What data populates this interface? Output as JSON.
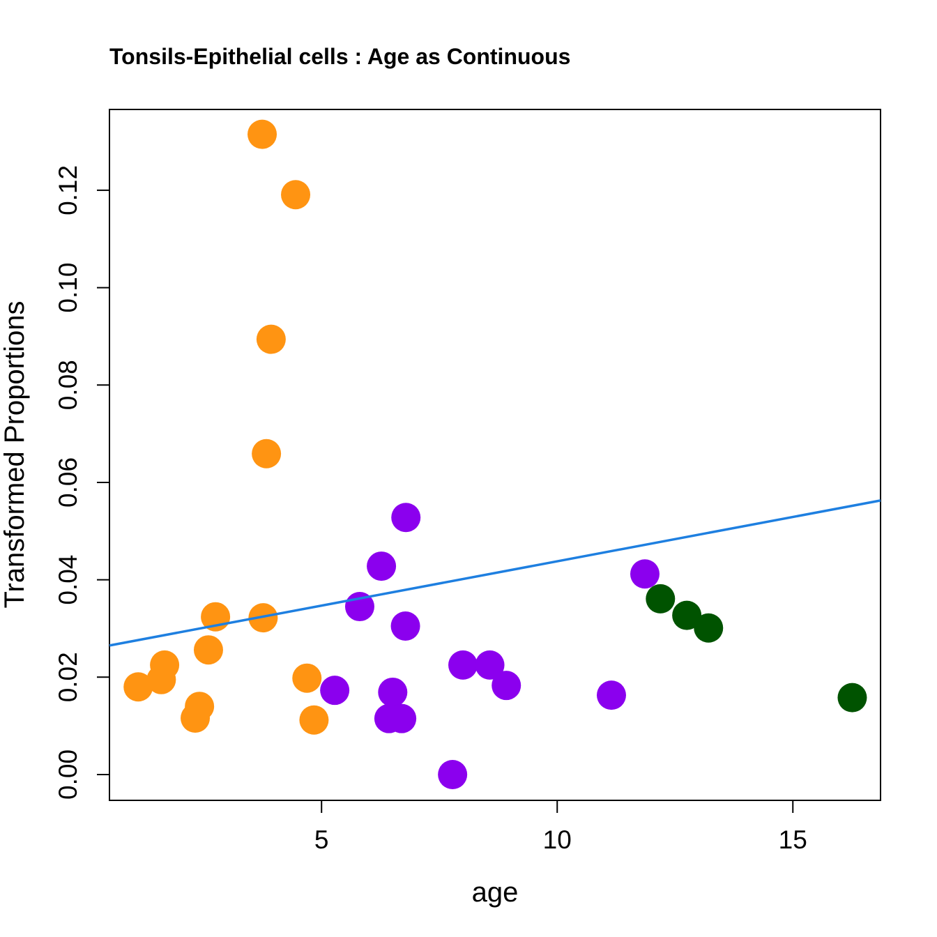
{
  "chart_data": {
    "type": "scatter",
    "title": "Tonsils-Epithelial cells : Age as Continuous",
    "xlabel": "age",
    "ylabel": "Transformed Proportions",
    "xlim": [
      0.5,
      16.86
    ],
    "ylim": [
      -0.0053,
      0.1366
    ],
    "xticks": [
      5,
      10,
      15
    ],
    "xtick_labels": [
      "5",
      "10",
      "15"
    ],
    "yticks": [
      0,
      0.02,
      0.04,
      0.06,
      0.08,
      0.1,
      0.12
    ],
    "ytick_labels": [
      "0.00",
      "0.02",
      "0.04",
      "0.06",
      "0.08",
      "0.10",
      "0.12"
    ],
    "grid": false,
    "series": [
      {
        "name": "group-orange",
        "color": "#FF9412",
        "points": [
          [
            3.74,
            0.1315
          ],
          [
            4.45,
            0.1191
          ],
          [
            3.93,
            0.0894
          ],
          [
            3.83,
            0.0659
          ],
          [
            2.75,
            0.0324
          ],
          [
            3.76,
            0.0322
          ],
          [
            2.6,
            0.0256
          ],
          [
            1.67,
            0.0225
          ],
          [
            1.6,
            0.0195
          ],
          [
            1.11,
            0.018
          ],
          [
            2.41,
            0.014
          ],
          [
            2.32,
            0.0116
          ],
          [
            4.69,
            0.0198
          ],
          [
            4.84,
            0.0112
          ]
        ]
      },
      {
        "name": "group-purple",
        "color": "#8B00EE",
        "points": [
          [
            6.79,
            0.0528
          ],
          [
            6.27,
            0.0428
          ],
          [
            5.81,
            0.0345
          ],
          [
            6.78,
            0.0305
          ],
          [
            5.28,
            0.0173
          ],
          [
            6.51,
            0.0169
          ],
          [
            6.43,
            0.0115
          ],
          [
            6.7,
            0.0115
          ],
          [
            7.78,
            0.0
          ],
          [
            8.0,
            0.0225
          ],
          [
            8.57,
            0.0225
          ],
          [
            8.92,
            0.0183
          ],
          [
            11.15,
            0.0163
          ],
          [
            11.86,
            0.0412
          ]
        ]
      },
      {
        "name": "group-green",
        "color": "#005300",
        "points": [
          [
            12.19,
            0.0361
          ],
          [
            12.75,
            0.0327
          ],
          [
            13.21,
            0.0301
          ],
          [
            16.26,
            0.0158
          ]
        ]
      }
    ],
    "fit_line": {
      "intercept": 0.0256,
      "slope": 0.00182,
      "color": "#1E7FE0"
    }
  }
}
